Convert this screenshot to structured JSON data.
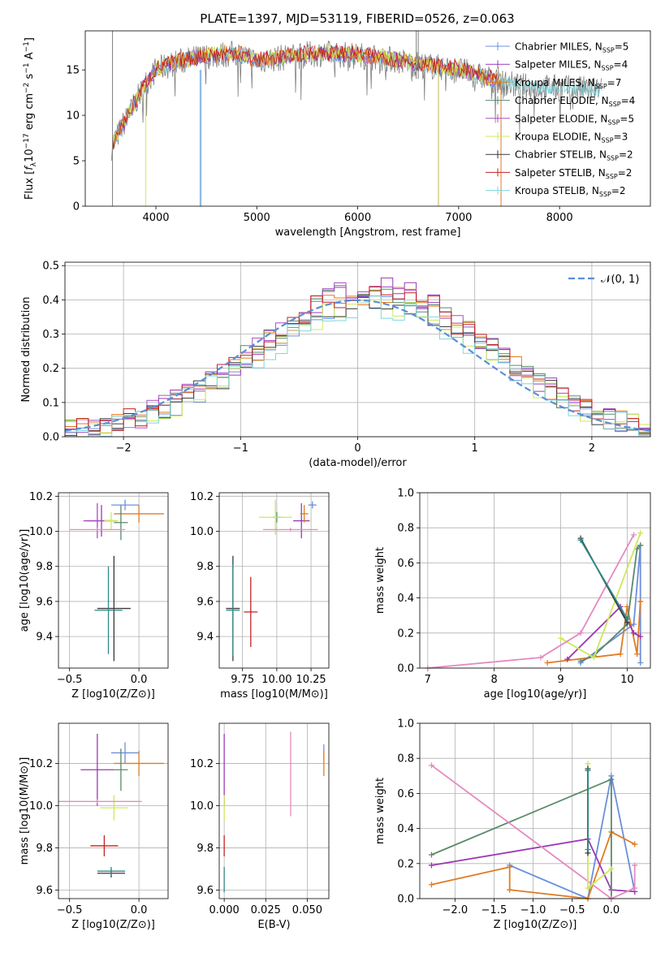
{
  "figure": {
    "title": "PLATE=1397, MJD=53119, FIBERID=0526, z=0.063"
  },
  "colors": {
    "chabrier_miles": "#6b8fdc",
    "salpeter_miles": "#9b39b3",
    "kroupa_miles": "#e07b22",
    "chabrier_elodie": "#5a8a6a",
    "salpeter_elodie": "#a94ec0",
    "kroupa_elodie": "#cfe85a",
    "chabrier_stelib": "#3a3a3a",
    "salpeter_stelib": "#c22222",
    "kroupa_stelib": "#7fd6dc",
    "gaussian": "#5b8fd6",
    "data": "#808080",
    "pink": "#e48ac0",
    "teal": "#2e8a8a"
  },
  "chart_data": [
    {
      "id": "spectrum",
      "type": "line",
      "xlabel": "wavelength [Angstrom, rest frame]",
      "ylabel": "Flux [f_λ 10^-17 erg cm^-2 s^-1 A^-1]",
      "xlim": [
        3300,
        8900
      ],
      "ylim": [
        0,
        19.3
      ],
      "xticks": [
        "4000",
        "5000",
        "6000",
        "7000",
        "8000"
      ],
      "yticks": [
        "0",
        "5",
        "10",
        "15"
      ],
      "legend_position": "top-right",
      "legend": [
        {
          "base": "Chabrier MILES, N",
          "sub": "SSP",
          "tail": "=5"
        },
        {
          "base": "Salpeter MILES, N",
          "sub": "SSP",
          "tail": "=4"
        },
        {
          "base": "Kroupa MILES, N",
          "sub": "SSP",
          "tail": "=7"
        },
        {
          "base": "Chabrier ELODIE, N",
          "sub": "SSP",
          "tail": "=4"
        },
        {
          "base": "Salpeter ELODIE, N",
          "sub": "SSP",
          "tail": "=5"
        },
        {
          "base": "Kroupa ELODIE, N",
          "sub": "SSP",
          "tail": "=3"
        },
        {
          "base": "Chabrier STELIB, N",
          "sub": "SSP",
          "tail": "=2"
        },
        {
          "base": "Salpeter STELIB, N",
          "sub": "SSP",
          "tail": "=2"
        },
        {
          "base": "Kroupa STELIB, N",
          "sub": "SSP",
          "tail": "=2"
        }
      ],
      "continuum": {
        "x": [
          3560,
          3700,
          3900,
          4000,
          4200,
          4500,
          4800,
          5000,
          5300,
          5600,
          6000,
          6300,
          6600,
          7000,
          7300,
          7600,
          8000,
          8400
        ],
        "y": [
          6.5,
          9.5,
          13.5,
          15.0,
          15.8,
          16.5,
          16.8,
          16.0,
          16.4,
          16.8,
          16.6,
          16.2,
          15.6,
          15.0,
          14.0,
          13.2,
          13.0,
          12.8
        ]
      }
    },
    {
      "id": "residuals",
      "type": "histogram",
      "xlabel": "(data-model)/error",
      "ylabel": "Normed distribution",
      "xlim": [
        -2.5,
        2.5
      ],
      "ylim": [
        0,
        0.51
      ],
      "xticks": [
        "−2",
        "−1",
        "0",
        "1",
        "2"
      ],
      "yticks": [
        "0.0",
        "0.1",
        "0.2",
        "0.3",
        "0.4",
        "0.5"
      ],
      "legend_label": "𝒩(0, 1)",
      "bin_width": 0.1,
      "series_peaks": [
        0.44,
        0.47,
        0.45,
        0.46,
        0.47,
        0.42,
        0.43,
        0.46,
        0.41
      ]
    },
    {
      "id": "age_vs_Z",
      "type": "scatter",
      "xlabel": "Z [log10(Z/Z⊙)]",
      "ylabel": "age  [log10(age/yr)]",
      "xlim": [
        -0.58,
        0.21
      ],
      "ylim": [
        9.22,
        10.22
      ],
      "xticks": [
        "−0.5",
        "0.0"
      ],
      "yticks": [
        "9.4",
        "9.6",
        "9.8",
        "10.0",
        "10.2"
      ],
      "points": [
        {
          "c": "chabrier_miles",
          "x": -0.1,
          "y": 10.15,
          "ex": 0.1,
          "ey": 0.03
        },
        {
          "c": "salpeter_miles",
          "x": -0.27,
          "y": 10.06,
          "ex": 0.11,
          "ey": 0.09
        },
        {
          "c": "kroupa_miles",
          "x": 0.0,
          "y": 10.1,
          "ex": 0.18,
          "ey": 0.05
        },
        {
          "c": "chabrier_elodie",
          "x": -0.13,
          "y": 10.05,
          "ex": 0.05,
          "ey": 0.1
        },
        {
          "c": "salpeter_elodie",
          "x": -0.3,
          "y": 10.06,
          "ex": 0.1,
          "ey": 0.1
        },
        {
          "c": "kroupa_elodie",
          "x": -0.2,
          "y": 10.06,
          "ex": 0.05,
          "ey": 0.05
        },
        {
          "c": "chabrier_stelib",
          "x": -0.18,
          "y": 9.56,
          "ex": 0.12,
          "ey": 0.3
        },
        {
          "c": "teal",
          "x": -0.22,
          "y": 9.55,
          "ex": 0.1,
          "ey": 0.25
        },
        {
          "c": "pink",
          "x": -0.3,
          "y": 10.01,
          "ex": 0.2,
          "ey": 0.01
        }
      ]
    },
    {
      "id": "age_vs_mass",
      "type": "scatter",
      "xlabel": "mass [log10(M/M⊙)]",
      "ylabel": "",
      "xlim": [
        9.58,
        10.38
      ],
      "ylim": [
        9.22,
        10.22
      ],
      "xticks": [
        "9.75",
        "10.00",
        "10.25"
      ],
      "yticks": [
        "9.4",
        "9.6",
        "9.8",
        "10.0",
        "10.2"
      ],
      "points": [
        {
          "c": "chabrier_miles",
          "x": 10.26,
          "y": 10.15,
          "ex": 0.03,
          "ey": 0.02
        },
        {
          "c": "salpeter_miles",
          "x": 10.18,
          "y": 10.06,
          "ex": 0.06,
          "ey": 0.1
        },
        {
          "c": "kroupa_miles",
          "x": 10.2,
          "y": 10.1,
          "ex": 0.03,
          "ey": 0.05
        },
        {
          "c": "chabrier_elodie",
          "x": 10.0,
          "y": 10.08,
          "ex": 0.03,
          "ey": 0.03
        },
        {
          "c": "kroupa_elodie",
          "x": 9.99,
          "y": 10.08,
          "ex": 0.12,
          "ey": 0.1
        },
        {
          "c": "chabrier_stelib",
          "x": 9.68,
          "y": 9.56,
          "ex": 0.05,
          "ey": 0.3
        },
        {
          "c": "salpeter_stelib",
          "x": 9.81,
          "y": 9.54,
          "ex": 0.05,
          "ey": 0.2
        },
        {
          "c": "teal",
          "x": 9.68,
          "y": 9.55,
          "ex": 0.05,
          "ey": 0.26
        },
        {
          "c": "pink",
          "x": 10.1,
          "y": 10.01,
          "ex": 0.2,
          "ey": 0.01
        }
      ]
    },
    {
      "id": "mass_weight_vs_age",
      "type": "line",
      "xlabel": "age  [log10(age/yr)]",
      "ylabel": "mass weight",
      "xlim": [
        6.88,
        10.35
      ],
      "ylim": [
        0,
        1
      ],
      "xticks": [
        "7",
        "8",
        "9",
        "10"
      ],
      "yticks": [
        "0.0",
        "0.2",
        "0.4",
        "0.6",
        "0.8",
        "1.0"
      ],
      "series": [
        {
          "c": "chabrier_miles",
          "x": [
            9.3,
            10.1,
            10.2,
            10.2
          ],
          "y": [
            0.03,
            0.25,
            0.7,
            0.03
          ]
        },
        {
          "c": "kroupa_miles",
          "x": [
            8.8,
            9.9,
            10.0,
            10.15,
            10.2
          ],
          "y": [
            0.03,
            0.08,
            0.35,
            0.08,
            0.38
          ]
        },
        {
          "c": "salpeter_miles",
          "x": [
            9.1,
            9.9,
            10.1,
            10.2
          ],
          "y": [
            0.05,
            0.35,
            0.2,
            0.18
          ]
        },
        {
          "c": "chabrier_elodie",
          "x": [
            9.3,
            9.5,
            10.0,
            10.15,
            10.2
          ],
          "y": [
            0.04,
            0.07,
            0.25,
            0.68,
            0.7
          ]
        },
        {
          "c": "kroupa_elodie",
          "x": [
            9.0,
            9.5,
            10.2
          ],
          "y": [
            0.17,
            0.06,
            0.77
          ]
        },
        {
          "c": "pink",
          "x": [
            7.0,
            8.7,
            9.3,
            10.1
          ],
          "y": [
            0.0,
            0.06,
            0.2,
            0.76
          ]
        },
        {
          "c": "chabrier_stelib",
          "x": [
            9.3,
            10.0
          ],
          "y": [
            0.74,
            0.26
          ]
        },
        {
          "c": "teal",
          "x": [
            9.3,
            10.0
          ],
          "y": [
            0.73,
            0.28
          ]
        }
      ]
    },
    {
      "id": "mass_vs_Z",
      "type": "scatter",
      "xlabel": "Z [log10(Z/Z⊙)]",
      "ylabel": "mass [log10(M/M⊙)]",
      "xlim": [
        -0.58,
        0.21
      ],
      "ylim": [
        9.56,
        10.39
      ],
      "xticks": [
        "−0.5",
        "0.0"
      ],
      "yticks": [
        "9.6",
        "9.8",
        "10.0",
        "10.2"
      ],
      "points": [
        {
          "c": "chabrier_miles",
          "x": -0.1,
          "y": 10.25,
          "ex": 0.1,
          "ey": 0.05
        },
        {
          "c": "salpeter_miles",
          "x": -0.3,
          "y": 10.17,
          "ex": 0.12,
          "ey": 0.17
        },
        {
          "c": "kroupa_miles",
          "x": 0.0,
          "y": 10.2,
          "ex": 0.18,
          "ey": 0.06
        },
        {
          "c": "chabrier_elodie",
          "x": -0.13,
          "y": 10.17,
          "ex": 0.05,
          "ey": 0.1
        },
        {
          "c": "kroupa_elodie",
          "x": -0.18,
          "y": 9.99,
          "ex": 0.1,
          "ey": 0.06
        },
        {
          "c": "salpeter_stelib",
          "x": -0.25,
          "y": 9.81,
          "ex": 0.1,
          "ey": 0.05
        },
        {
          "c": "chabrier_stelib",
          "x": -0.2,
          "y": 9.68,
          "ex": 0.1,
          "ey": 0.02
        },
        {
          "c": "teal",
          "x": -0.2,
          "y": 9.69,
          "ex": 0.1,
          "ey": 0.02
        },
        {
          "c": "pink",
          "x": -0.3,
          "y": 10.02,
          "ex": 0.32,
          "ey": 0.01
        }
      ]
    },
    {
      "id": "mass_vs_ebv",
      "type": "scatter",
      "xlabel": "E(B-V)",
      "ylabel": "",
      "xlim": [
        -0.003,
        0.063
      ],
      "ylim": [
        9.56,
        10.39
      ],
      "xticks": [
        "0.000",
        "0.025",
        "0.050"
      ],
      "yticks": [
        "9.6",
        "9.8",
        "10.0",
        "10.2"
      ],
      "points": [
        {
          "c": "salpeter_miles",
          "x": 0.0,
          "y": 10.17,
          "ex": 0.0,
          "ey": 0.17
        },
        {
          "c": "kroupa_elodie",
          "x": 0.0,
          "y": 9.99,
          "ex": 0.0,
          "ey": 0.06
        },
        {
          "c": "salpeter_stelib",
          "x": 0.0,
          "y": 9.81,
          "ex": 0.0,
          "ey": 0.05
        },
        {
          "c": "teal",
          "x": 0.0,
          "y": 9.65,
          "ex": 0.0,
          "ey": 0.06
        },
        {
          "c": "pink",
          "x": 0.04,
          "y": 10.15,
          "ex": 0.0,
          "ey": 0.2
        },
        {
          "c": "chabrier_miles",
          "x": 0.06,
          "y": 10.25,
          "ex": 0.0,
          "ey": 0.04
        },
        {
          "c": "kroupa_miles",
          "x": 0.06,
          "y": 10.2,
          "ex": 0.0,
          "ey": 0.06
        }
      ]
    },
    {
      "id": "mass_weight_vs_Z",
      "type": "line",
      "xlabel": "Z [log10(Z/Z⊙)]",
      "ylabel": "mass weight",
      "xlim": [
        -2.45,
        0.5
      ],
      "ylim": [
        0,
        1
      ],
      "xticks": [
        "−2.0",
        "−1.5",
        "−1.0",
        "−0.5",
        "0.0"
      ],
      "yticks": [
        "0.0",
        "0.2",
        "0.4",
        "0.6",
        "0.8",
        "1.0"
      ],
      "series": [
        {
          "c": "chabrier_miles",
          "x": [
            -1.3,
            -0.3,
            0.0,
            0.3
          ],
          "y": [
            0.19,
            0.0,
            0.7,
            0.04
          ]
        },
        {
          "c": "kroupa_miles",
          "x": [
            -2.3,
            -1.3,
            -1.3,
            -0.3,
            0.0,
            0.3
          ],
          "y": [
            0.08,
            0.18,
            0.05,
            0.0,
            0.38,
            0.31
          ]
        },
        {
          "c": "salpeter_miles",
          "x": [
            -2.3,
            -0.3,
            0.0,
            0.3
          ],
          "y": [
            0.19,
            0.34,
            0.05,
            0.04
          ]
        },
        {
          "c": "chabrier_elodie",
          "x": [
            -2.3,
            0.0,
            0.0
          ],
          "y": [
            0.25,
            0.68,
            0.0
          ]
        },
        {
          "c": "pink",
          "x": [
            -2.3,
            0.0,
            0.3,
            0.3
          ],
          "y": [
            0.76,
            0.0,
            0.06,
            0.19
          ]
        },
        {
          "c": "kroupa_elodie",
          "x": [
            -0.3,
            -0.3,
            0.0
          ],
          "y": [
            0.77,
            0.06,
            0.17
          ]
        },
        {
          "c": "chabrier_stelib",
          "x": [
            -0.3,
            -0.3
          ],
          "y": [
            0.74,
            0.26
          ]
        },
        {
          "c": "teal",
          "x": [
            -0.3,
            -0.3
          ],
          "y": [
            0.73,
            0.28
          ]
        }
      ]
    }
  ]
}
